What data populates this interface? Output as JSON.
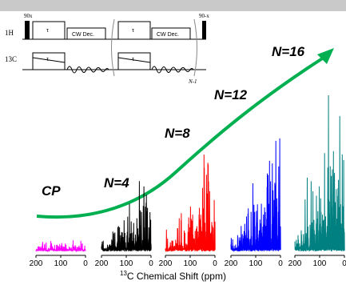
{
  "pulse_sequence": {
    "channel_1H": "1H",
    "channel_13C": "13C",
    "pulse_start_phase": "90x",
    "pulse_end_phase": "90-x",
    "block_tau": "τ",
    "decoupling_label": "CW Dec.",
    "repeat_label": "N-1"
  },
  "chart_data": {
    "type": "line",
    "title": "",
    "xlabel": "13C Chemical Shift (ppm)",
    "panels": [
      {
        "label": "CP",
        "color": "#ff00ff",
        "amplitude": 0.15,
        "xlim": [
          200,
          0
        ],
        "ticks": [
          "200",
          "100",
          "0"
        ]
      },
      {
        "label": "N=4",
        "color": "#000000",
        "amplitude": 0.45,
        "xlim": [
          200,
          0
        ],
        "ticks": [
          "200",
          "100",
          "0"
        ]
      },
      {
        "label": "N=8",
        "color": "#ff0000",
        "amplitude": 0.62,
        "xlim": [
          200,
          0
        ],
        "ticks": [
          "200",
          "100",
          "0"
        ]
      },
      {
        "label": "N=12",
        "color": "#0000ff",
        "amplitude": 0.8,
        "xlim": [
          200,
          0
        ],
        "ticks": [
          "200",
          "100",
          "0"
        ]
      },
      {
        "label": "N=16",
        "color": "#008080",
        "amplitude": 1.0,
        "xlim": [
          200,
          0
        ],
        "ticks": [
          "200",
          "100",
          "0"
        ]
      }
    ],
    "trend_arrow_color": "#00b050"
  }
}
